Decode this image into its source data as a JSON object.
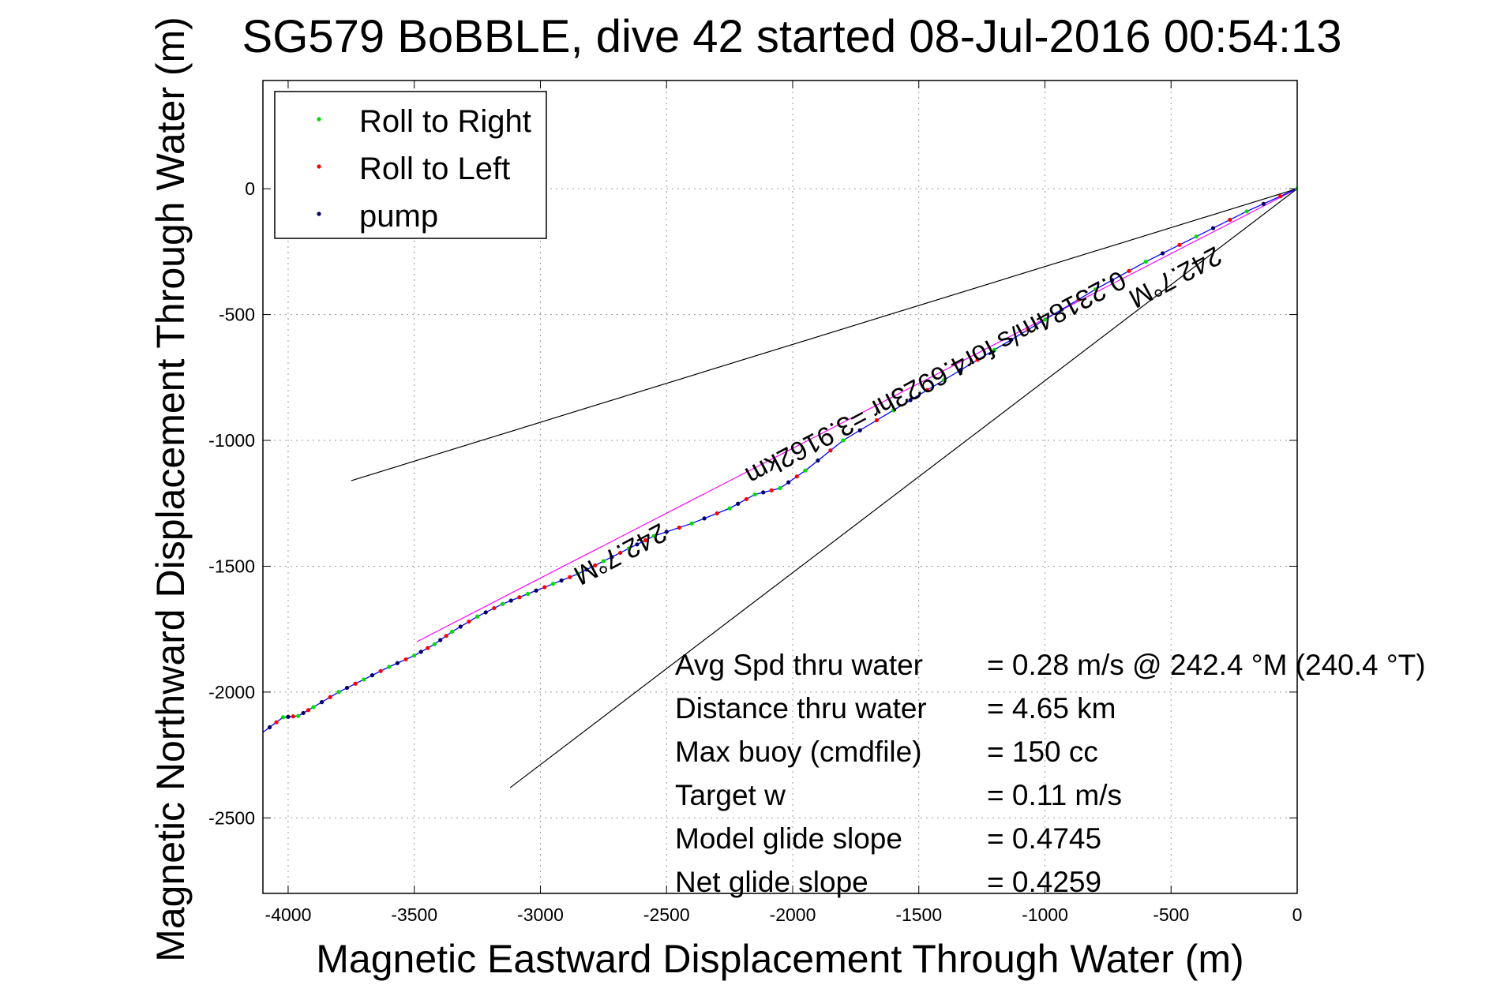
{
  "chart_data": {
    "type": "scatter",
    "title": "SG579 BoBBLE, dive 42 started 08-Jul-2016 00:54:13",
    "xlabel": "Magnetic Eastward Displacement Through Water (m)",
    "ylabel": "Magnetic Northward Displacement Through Water (m)",
    "xlim": [
      -4100,
      0
    ],
    "ylim": [
      -2800,
      430
    ],
    "x_ticks": [
      -4000,
      -3500,
      -3000,
      -2500,
      -2000,
      -1500,
      -1000,
      -500,
      0
    ],
    "x_tick_labels": [
      "-4000",
      "-3500",
      "-3000",
      "-2500",
      "-2000",
      "-1500",
      "-1000",
      "-500",
      "0"
    ],
    "y_ticks": [
      0,
      -500,
      -1000,
      -1500,
      -2000,
      -2500
    ],
    "y_tick_labels": [
      "0",
      "-500",
      "-1000",
      "-1500",
      "-2000",
      "-2500"
    ],
    "grid": true,
    "legend_position": "top-left",
    "legend": [
      {
        "label": "Roll to Right",
        "color": "#00dd00"
      },
      {
        "label": "Roll to Left",
        "color": "#ff0000"
      },
      {
        "label": "pump",
        "color": "#000066"
      }
    ],
    "track": {
      "color": "#0000ff",
      "x": [
        0,
        -200,
        -400,
        -600,
        -800,
        -1000,
        -1200,
        -1400,
        -1600,
        -1800,
        -1950,
        -2050,
        -2150,
        -2250,
        -2400,
        -2550,
        -2650,
        -2750,
        -2850,
        -2950,
        -3050,
        -3150,
        -3250,
        -3350,
        -3420,
        -3500,
        -3600,
        -3700,
        -3800,
        -3900,
        -3960,
        -4020,
        -4100
      ],
      "y": [
        0,
        -90,
        -190,
        -290,
        -400,
        -520,
        -640,
        -760,
        -880,
        -1000,
        -1120,
        -1190,
        -1215,
        -1270,
        -1330,
        -1380,
        -1430,
        -1480,
        -1530,
        -1570,
        -1610,
        -1650,
        -1700,
        -1760,
        -1810,
        -1855,
        -1900,
        -1950,
        -2000,
        -2060,
        -2095,
        -2100,
        -2160
      ]
    },
    "lines": [
      {
        "name": "",
        "color": "#000000",
        "x": [
          0,
          -3750
        ],
        "y": [
          0,
          -1160
        ]
      },
      {
        "name": "",
        "color": "#000000",
        "x": [
          0,
          -3120
        ],
        "y": [
          0,
          -2380
        ]
      },
      {
        "name": "",
        "color": "#ff00ff",
        "x": [
          0,
          -3490
        ],
        "y": [
          0,
          -1800
        ]
      }
    ],
    "annotations": [
      {
        "text": "242.7°M",
        "x": -2700,
        "y": -1420,
        "angle_deg": 152
      },
      {
        "text": "242.7°M",
        "x": -500,
        "y": -320,
        "angle_deg": 152
      },
      {
        "text": "0.23184m/s for4.6923hr =3.9162km",
        "x": -1450,
        "y": -720,
        "angle_deg": 152
      }
    ],
    "stats": [
      {
        "label": "Avg Spd thru water",
        "value": "=  0.28 m/s @ 242.4 °M (240.4 °T)"
      },
      {
        "label": "Distance thru water",
        "value": "=  4.65 km"
      },
      {
        "label": "Max buoy (cmdfile)",
        "value": "= 150 cc"
      },
      {
        "label": "Target w",
        "value": "= 0.11 m/s"
      },
      {
        "label": "Model glide slope",
        "value": "= 0.4745"
      },
      {
        "label": "Net glide slope",
        "value": "= 0.4259"
      }
    ]
  }
}
